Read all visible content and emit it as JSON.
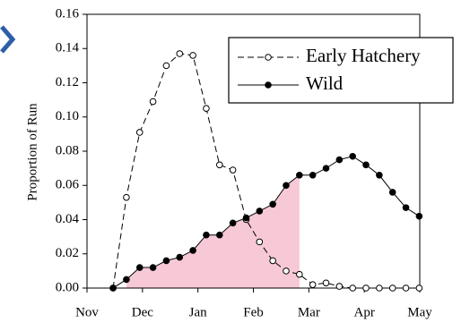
{
  "chart_data": {
    "type": "line",
    "y_label": "Proportion of Run",
    "x": [
      0.47,
      0.71,
      0.95,
      1.19,
      1.43,
      1.67,
      1.91,
      2.15,
      2.39,
      2.63,
      2.87,
      3.11,
      3.35,
      3.59,
      3.83,
      4.07,
      4.31,
      4.55,
      4.79,
      5.03,
      5.27,
      5.51,
      5.75,
      5.99
    ],
    "series": [
      {
        "name": "Early Hatchery",
        "color": "#000000",
        "dashed": true,
        "marker": "open",
        "values": [
          0.0,
          0.053,
          0.091,
          0.109,
          0.13,
          0.137,
          0.136,
          0.105,
          0.072,
          0.069,
          0.04,
          0.027,
          0.016,
          0.01,
          0.008,
          0.002,
          0.003,
          0.001,
          0.0,
          0.0,
          0.0,
          0.0,
          0.0,
          0.0
        ]
      },
      {
        "name": "Wild",
        "color": "#000000",
        "dashed": false,
        "marker": "filled",
        "values": [
          0.0,
          0.005,
          0.012,
          0.012,
          0.016,
          0.018,
          0.022,
          0.031,
          0.031,
          0.038,
          0.041,
          0.045,
          0.049,
          0.06,
          0.066,
          0.066,
          0.07,
          0.075,
          0.077,
          0.072,
          0.066,
          0.056,
          0.047,
          0.042
        ]
      }
    ],
    "xlim": [
      0,
      6
    ],
    "xticks": [
      {
        "value": 0,
        "label": "Nov"
      },
      {
        "value": 1,
        "label": "Dec"
      },
      {
        "value": 2,
        "label": "Jan"
      },
      {
        "value": 3,
        "label": "Feb"
      },
      {
        "value": 4,
        "label": "Mar"
      },
      {
        "value": 5,
        "label": "Apr"
      },
      {
        "value": 6,
        "label": "May"
      }
    ],
    "ylim": [
      0,
      0.16
    ],
    "yticks": [
      {
        "value": 0,
        "label": "0.00"
      },
      0.02,
      0.04,
      0.06,
      0.08,
      {
        "value": 0.1,
        "label": "0.10"
      },
      0.12,
      0.14,
      0.16
    ],
    "legend": "upper right",
    "shade_color": "#f7c8d6"
  }
}
